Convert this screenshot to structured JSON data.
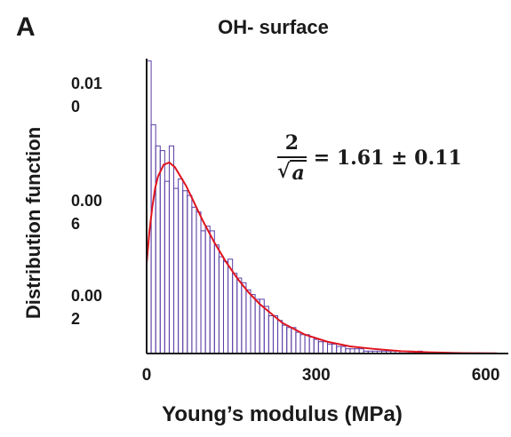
{
  "panel_label": "A",
  "chart_data": {
    "type": "bar",
    "title": "OH- surface",
    "xlabel": "Young’s modulus (MPa)",
    "ylabel": "Distribution function",
    "xlim": [
      0,
      640
    ],
    "ylim": [
      0,
      0.0125
    ],
    "xticks": [
      {
        "value": 0,
        "label": "0"
      },
      {
        "value": 300,
        "label": "300"
      },
      {
        "value": 600,
        "label": "600"
      }
    ],
    "yticks": [
      {
        "value": 0.0112,
        "line1": "0.01",
        "line2": "0"
      },
      {
        "value": 0.0062,
        "line1": "0.00",
        "line2": "6"
      },
      {
        "value": 0.0022,
        "line1": "0.00",
        "line2": "2"
      }
    ],
    "bin_width": 8,
    "bin_start": 0,
    "histogram_values": [
      0.0124,
      0.0097,
      0.0088,
      0.0086,
      0.0073,
      0.0088,
      0.007,
      0.0074,
      0.0069,
      0.0067,
      0.0062,
      0.006,
      0.0052,
      0.0054,
      0.0052,
      0.0046,
      0.0041,
      0.0039,
      0.004,
      0.0034,
      0.0032,
      0.003,
      0.0027,
      0.0025,
      0.0023,
      0.0023,
      0.002,
      0.0016,
      0.0016,
      0.0014,
      0.0012,
      0.0011,
      0.0011,
      0.0009,
      0.0008,
      0.0008,
      0.0007,
      0.0006,
      0.0005,
      0.0005,
      0.0004,
      0.0004,
      0.0003,
      0.0003,
      0.0002,
      0.0002,
      0.0002,
      0.0002,
      0.0001,
      0.0001,
      0.0001,
      0.0001,
      0.0001,
      0.0001,
      0.0001,
      0.0001,
      0.0,
      0.0,
      0.0001,
      0.0,
      0.0001,
      0.0,
      0.0,
      0.0,
      0.0,
      0.0,
      0.0,
      0.0,
      0.0,
      0.0,
      0.0,
      0.0,
      0.0,
      0.0,
      0.0,
      0.0,
      0.0,
      0.0,
      0.0
    ],
    "fit_curve": {
      "name": "fit",
      "x": [
        0,
        5,
        10,
        15,
        20,
        30,
        40,
        50,
        60,
        70,
        80,
        100,
        120,
        140,
        160,
        180,
        200,
        240,
        280,
        320,
        360,
        400,
        450,
        500,
        560,
        620
      ],
      "y": [
        0.0038,
        0.0052,
        0.0062,
        0.007,
        0.0075,
        0.008,
        0.0081,
        0.0079,
        0.0075,
        0.0071,
        0.0066,
        0.0056,
        0.0047,
        0.0039,
        0.0032,
        0.0026,
        0.0021,
        0.0013,
        0.0008,
        0.0005,
        0.0003,
        0.0002,
        0.0001,
        5e-05,
        2e-05,
        1e-05
      ]
    },
    "annotation": {
      "numerator": "2",
      "radicand": "a",
      "value": "= 1.61 ± 0.11"
    },
    "colors": {
      "bars": "#5b3ea6",
      "fit": "#e0141e",
      "axis": "#1a1a1a"
    },
    "grid": false
  }
}
